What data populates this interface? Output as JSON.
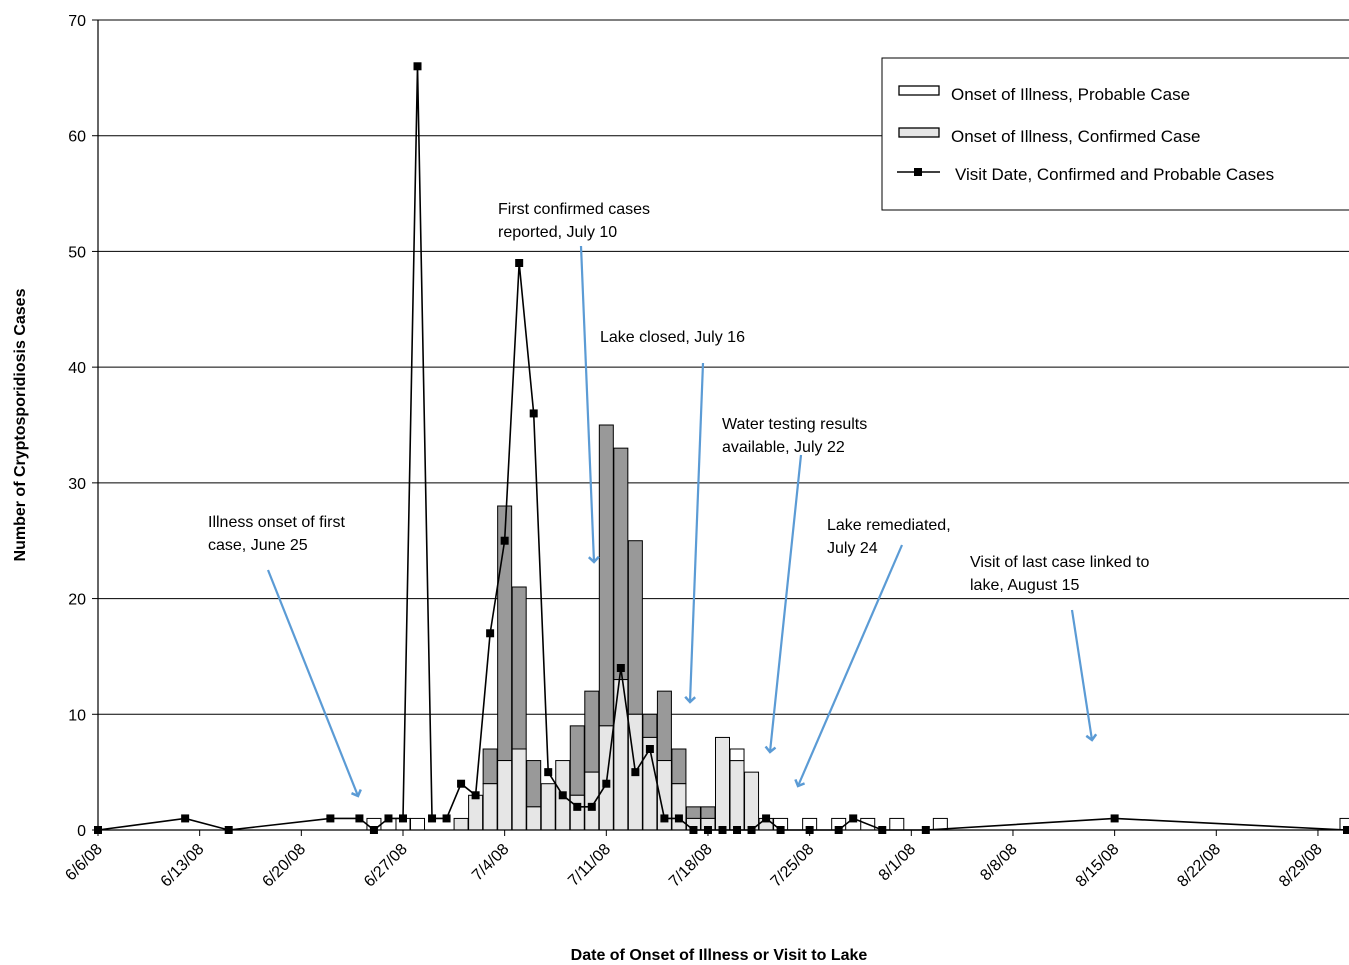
{
  "chart_data": {
    "type": "bar",
    "ylabel": "Number of  Cryptosporidiosis Cases",
    "xlabel": "Date of Onset of Illness or Visit to Lake",
    "ylim": [
      0,
      70
    ],
    "yticks": [
      0,
      10,
      20,
      30,
      40,
      50,
      60,
      70
    ],
    "xlim": [
      "6/6/08",
      "8/31/08"
    ],
    "xtick_labels": [
      "6/6/08",
      "6/13/08",
      "6/20/08",
      "6/27/08",
      "7/4/08",
      "7/11/08",
      "7/18/08",
      "7/25/08",
      "8/1/08",
      "8/8/08",
      "8/15/08",
      "8/22/08",
      "8/29/08"
    ],
    "grid": "horizontal",
    "legend_position": "top-right",
    "colors": {
      "probable": "#ffffff",
      "confirmed": "#e6e6e6",
      "confirmed_dark": "#999999",
      "visit_line": "#000000",
      "arrow": "#5b9bd5"
    },
    "legend": [
      {
        "label": "Onset of Illness, Probable Case",
        "kind": "bar-probable"
      },
      {
        "label": "Onset of Illness, Confirmed Case",
        "kind": "bar-confirmed"
      },
      {
        "label": "Visit Date, Confirmed and Probable Cases",
        "kind": "line"
      }
    ],
    "onset_bars": [
      {
        "date": "6/25/08",
        "confirmed": 0,
        "probable": 1
      },
      {
        "date": "6/27/08",
        "confirmed": 0,
        "probable": 1
      },
      {
        "date": "6/28/08",
        "confirmed": 0,
        "probable": 1
      },
      {
        "date": "7/1/08",
        "confirmed": 1,
        "probable": 0
      },
      {
        "date": "7/2/08",
        "confirmed": 3,
        "probable": 0
      },
      {
        "date": "7/3/08",
        "confirmed": 7,
        "probable": 0
      },
      {
        "date": "7/4/08",
        "confirmed": 28,
        "probable": 0
      },
      {
        "date": "7/5/08",
        "confirmed": 21,
        "probable": 0
      },
      {
        "date": "7/6/08",
        "confirmed": 6,
        "probable": 0
      },
      {
        "date": "7/7/08",
        "confirmed": 4,
        "probable": 0
      },
      {
        "date": "7/8/08",
        "confirmed": 6,
        "probable": 0
      },
      {
        "date": "7/9/08",
        "confirmed": 9,
        "probable": 0
      },
      {
        "date": "7/10/08",
        "confirmed": 12,
        "probable": 0
      },
      {
        "date": "7/11/08",
        "confirmed": 35,
        "probable": 0
      },
      {
        "date": "7/12/08",
        "confirmed": 33,
        "probable": 0
      },
      {
        "date": "7/13/08",
        "confirmed": 25,
        "probable": 0
      },
      {
        "date": "7/14/08",
        "confirmed": 10,
        "probable": 0
      },
      {
        "date": "7/15/08",
        "confirmed": 12,
        "probable": 0
      },
      {
        "date": "7/16/08",
        "confirmed": 7,
        "probable": 0
      },
      {
        "date": "7/17/08",
        "confirmed": 2,
        "probable": 0
      },
      {
        "date": "7/18/08",
        "confirmed": 2,
        "probable": 0
      },
      {
        "date": "7/19/08",
        "confirmed": 8,
        "probable": 0
      },
      {
        "date": "7/20/08",
        "confirmed": 6,
        "probable": 1
      },
      {
        "date": "7/21/08",
        "confirmed": 5,
        "probable": 0
      },
      {
        "date": "7/22/08",
        "confirmed": 1,
        "probable": 0
      },
      {
        "date": "7/23/08",
        "confirmed": 0,
        "probable": 1
      },
      {
        "date": "7/25/08",
        "confirmed": 0,
        "probable": 1
      },
      {
        "date": "7/27/08",
        "confirmed": 0,
        "probable": 1
      },
      {
        "date": "7/29/08",
        "confirmed": 0,
        "probable": 1
      },
      {
        "date": "7/31/08",
        "confirmed": 0,
        "probable": 1
      },
      {
        "date": "8/3/08",
        "confirmed": 0,
        "probable": 1
      },
      {
        "date": "8/31/08",
        "confirmed": 0,
        "probable": 1
      }
    ],
    "onset_light_segments": [
      {
        "date": "7/3/08",
        "value": 4
      },
      {
        "date": "7/4/08",
        "value": 6
      },
      {
        "date": "7/5/08",
        "value": 7
      },
      {
        "date": "7/6/08",
        "value": 2
      },
      {
        "date": "7/9/08",
        "value": 3
      },
      {
        "date": "7/10/08",
        "value": 5
      },
      {
        "date": "7/11/08",
        "value": 9
      },
      {
        "date": "7/12/08",
        "value": 13
      },
      {
        "date": "7/13/08",
        "value": 10
      },
      {
        "date": "7/14/08",
        "value": 8
      },
      {
        "date": "7/15/08",
        "value": 6
      },
      {
        "date": "7/16/08",
        "value": 4
      },
      {
        "date": "7/17/08",
        "value": 1
      },
      {
        "date": "7/18/08",
        "value": 1
      },
      {
        "date": "7/19/08",
        "value": 8
      },
      {
        "date": "7/20/08",
        "value": 6
      },
      {
        "date": "7/21/08",
        "value": 5
      },
      {
        "date": "7/22/08",
        "value": 1
      }
    ],
    "visit_series": {
      "name": "Visit Date, Confirmed and Probable Cases",
      "points": [
        [
          "6/6/08",
          0
        ],
        [
          "6/12/08",
          1
        ],
        [
          "6/15/08",
          0
        ],
        [
          "6/22/08",
          1
        ],
        [
          "6/24/08",
          1
        ],
        [
          "6/25/08",
          0
        ],
        [
          "6/26/08",
          1
        ],
        [
          "6/27/08",
          1
        ],
        [
          "6/28/08",
          66
        ],
        [
          "6/29/08",
          1
        ],
        [
          "6/30/08",
          1
        ],
        [
          "7/1/08",
          4
        ],
        [
          "7/2/08",
          3
        ],
        [
          "7/3/08",
          17
        ],
        [
          "7/4/08",
          25
        ],
        [
          "7/5/08",
          49
        ],
        [
          "7/6/08",
          36
        ],
        [
          "7/7/08",
          5
        ],
        [
          "7/8/08",
          3
        ],
        [
          "7/9/08",
          2
        ],
        [
          "7/10/08",
          2
        ],
        [
          "7/11/08",
          4
        ],
        [
          "7/12/08",
          14
        ],
        [
          "7/13/08",
          5
        ],
        [
          "7/14/08",
          7
        ],
        [
          "7/15/08",
          1
        ],
        [
          "7/16/08",
          1
        ],
        [
          "7/17/08",
          0
        ],
        [
          "7/18/08",
          0
        ],
        [
          "7/19/08",
          0
        ],
        [
          "7/20/08",
          0
        ],
        [
          "7/21/08",
          0
        ],
        [
          "7/22/08",
          1
        ],
        [
          "7/23/08",
          0
        ],
        [
          "7/25/08",
          0
        ],
        [
          "7/27/08",
          0
        ],
        [
          "7/28/08",
          1
        ],
        [
          "7/30/08",
          0
        ],
        [
          "8/2/08",
          0
        ],
        [
          "8/15/08",
          1
        ],
        [
          "8/31/08",
          0
        ]
      ]
    },
    "annotations": [
      {
        "lines": [
          "Illness onset of first",
          "case, June 25"
        ],
        "points_to": "6/25/08"
      },
      {
        "lines": [
          "First confirmed cases",
          "reported, July 10"
        ],
        "points_to": "7/10/08"
      },
      {
        "lines": [
          "Lake closed, July 16"
        ],
        "points_to": "7/16/08"
      },
      {
        "lines": [
          "Water testing results",
          "available, July 22"
        ],
        "points_to": "7/22/08"
      },
      {
        "lines": [
          "Lake remediated,",
          "July 24"
        ],
        "points_to": "7/24/08"
      },
      {
        "lines": [
          "Visit of last case linked to",
          "lake, August 15"
        ],
        "points_to": "8/15/08"
      }
    ]
  }
}
